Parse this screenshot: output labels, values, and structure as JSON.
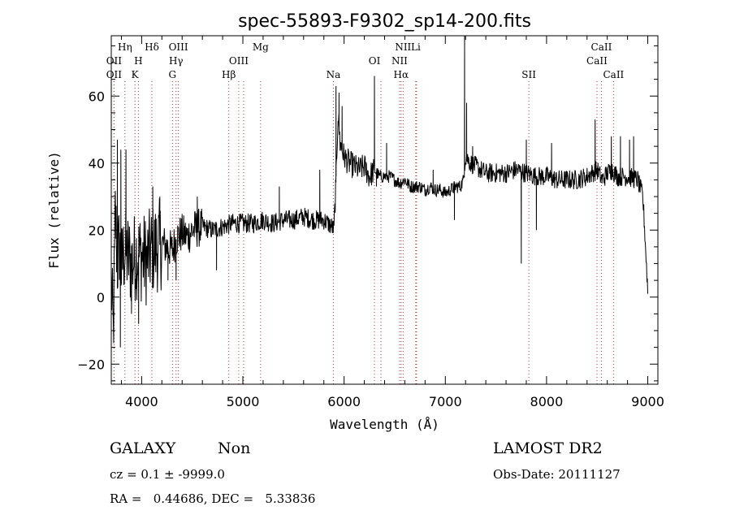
{
  "chart_data": {
    "type": "line",
    "title": "spec-55893-F9302_sp14-200.fits",
    "xlabel": "Wavelength (Å)",
    "ylabel": "Flux (relative)",
    "xlim": [
      3700,
      9100
    ],
    "ylim": [
      -26,
      78
    ],
    "xticks": [
      4000,
      5000,
      6000,
      7000,
      8000,
      9000
    ],
    "yticks": [
      -20,
      0,
      20,
      40,
      60
    ],
    "grid": false,
    "line_color": "#000000",
    "marker_color": "#b03030",
    "spectrum_anchors": [
      [
        3700,
        5
      ],
      [
        3720,
        -12
      ],
      [
        3740,
        25
      ],
      [
        3760,
        10
      ],
      [
        3780,
        16
      ],
      [
        3800,
        8
      ],
      [
        3830,
        14
      ],
      [
        3870,
        12
      ],
      [
        3900,
        10
      ],
      [
        3950,
        13
      ],
      [
        4000,
        12
      ],
      [
        4050,
        11
      ],
      [
        4100,
        14
      ],
      [
        4150,
        15
      ],
      [
        4200,
        16
      ],
      [
        4250,
        15
      ],
      [
        4300,
        14
      ],
      [
        4350,
        18
      ],
      [
        4400,
        19
      ],
      [
        4450,
        18
      ],
      [
        4500,
        20
      ],
      [
        4600,
        21
      ],
      [
        4700,
        20
      ],
      [
        4800,
        21
      ],
      [
        4900,
        22
      ],
      [
        5000,
        22
      ],
      [
        5100,
        22
      ],
      [
        5200,
        23
      ],
      [
        5300,
        22
      ],
      [
        5400,
        23
      ],
      [
        5500,
        23
      ],
      [
        5600,
        24
      ],
      [
        5700,
        23
      ],
      [
        5800,
        23
      ],
      [
        5880,
        21
      ],
      [
        5900,
        20
      ],
      [
        5920,
        35
      ],
      [
        5940,
        55
      ],
      [
        5960,
        46
      ],
      [
        6000,
        42
      ],
      [
        6050,
        40
      ],
      [
        6100,
        39
      ],
      [
        6150,
        38
      ],
      [
        6200,
        39
      ],
      [
        6250,
        36
      ],
      [
        6300,
        38
      ],
      [
        6350,
        36
      ],
      [
        6400,
        36
      ],
      [
        6450,
        36
      ],
      [
        6500,
        35
      ],
      [
        6550,
        34
      ],
      [
        6600,
        35
      ],
      [
        6650,
        33
      ],
      [
        6700,
        33
      ],
      [
        6750,
        33
      ],
      [
        6800,
        32
      ],
      [
        6850,
        33
      ],
      [
        6900,
        32
      ],
      [
        6950,
        32
      ],
      [
        7000,
        31
      ],
      [
        7050,
        32
      ],
      [
        7100,
        33
      ],
      [
        7150,
        33
      ],
      [
        7180,
        35
      ],
      [
        7200,
        42
      ],
      [
        7250,
        40
      ],
      [
        7300,
        39
      ],
      [
        7400,
        37
      ],
      [
        7500,
        37
      ],
      [
        7600,
        37
      ],
      [
        7700,
        38
      ],
      [
        7800,
        37
      ],
      [
        7900,
        36
      ],
      [
        8000,
        36
      ],
      [
        8100,
        35
      ],
      [
        8200,
        35
      ],
      [
        8300,
        35
      ],
      [
        8400,
        36
      ],
      [
        8500,
        38
      ],
      [
        8550,
        35
      ],
      [
        8600,
        37
      ],
      [
        8650,
        38
      ],
      [
        8700,
        36
      ],
      [
        8800,
        36
      ],
      [
        8900,
        35
      ],
      [
        8950,
        30
      ],
      [
        8970,
        20
      ],
      [
        9000,
        2
      ]
    ],
    "spectrum_spikes": [
      [
        3760,
        47
      ],
      [
        3795,
        44
      ],
      [
        3845,
        44
      ],
      [
        3790,
        -15
      ],
      [
        3900,
        -5
      ],
      [
        3970,
        -8
      ],
      [
        4110,
        33
      ],
      [
        4180,
        30
      ],
      [
        4260,
        5
      ],
      [
        4340,
        5
      ],
      [
        4550,
        30
      ],
      [
        4740,
        8
      ],
      [
        5360,
        33
      ],
      [
        5760,
        38
      ],
      [
        5920,
        63
      ],
      [
        5950,
        61
      ],
      [
        5980,
        57
      ],
      [
        6300,
        66
      ],
      [
        6320,
        33
      ],
      [
        6420,
        46
      ],
      [
        6880,
        38
      ],
      [
        7090,
        23
      ],
      [
        7190,
        78
      ],
      [
        7210,
        58
      ],
      [
        7270,
        45
      ],
      [
        7750,
        10
      ],
      [
        7800,
        47
      ],
      [
        7900,
        20
      ],
      [
        8050,
        46
      ],
      [
        8480,
        53
      ],
      [
        8640,
        48
      ],
      [
        8730,
        48
      ],
      [
        8820,
        47
      ],
      [
        8860,
        48
      ]
    ],
    "line_markers": [
      {
        "label": "OII",
        "x": 3727,
        "row": 1
      },
      {
        "label": "Hη",
        "x": 3835,
        "row": 0
      },
      {
        "label": "H",
        "x": 3968,
        "row": 1
      },
      {
        "label": "K",
        "x": 3934,
        "row": 2
      },
      {
        "label": "Hδ",
        "x": 4101,
        "row": 0
      },
      {
        "label": "OII",
        "x": 3727,
        "row": 2
      },
      {
        "label": "OIII",
        "x": 4363,
        "row": 0
      },
      {
        "label": "Hγ",
        "x": 4340,
        "row": 1
      },
      {
        "label": "G",
        "x": 4304,
        "row": 2
      },
      {
        "label": "OIII",
        "x": 4959,
        "row": 1
      },
      {
        "label": "Hβ",
        "x": 4861,
        "row": 2
      },
      {
        "label": "OIII",
        "x": 5007,
        "row": -1
      },
      {
        "label": "Mg",
        "x": 5175,
        "row": 0
      },
      {
        "label": "Na",
        "x": 5894,
        "row": 2
      },
      {
        "label": "OI",
        "x": 6300,
        "row": 1
      },
      {
        "label": "OI",
        "x": 6364,
        "row": -1
      },
      {
        "label": "NII",
        "x": 6548,
        "row": 1
      },
      {
        "label": "NII",
        "x": 6583,
        "row": 0
      },
      {
        "label": "Hα",
        "x": 6563,
        "row": 2
      },
      {
        "label": "Li",
        "x": 6708,
        "row": 0
      },
      {
        "label": "SII",
        "x": 6716,
        "row": -1
      },
      {
        "label": "SII",
        "x": 7825,
        "row": 2
      },
      {
        "label": "CaII",
        "x": 8498,
        "row": 1
      },
      {
        "label": "CaII",
        "x": 8542,
        "row": 0
      },
      {
        "label": "CaII",
        "x": 8662,
        "row": 2
      }
    ]
  },
  "info": {
    "object_class": "GALAXY",
    "subclass": "Non",
    "survey": "LAMOST DR2",
    "redshift_line": "cz = 0.1 ± -9999.0",
    "obs_date_line": "Obs-Date: 20111127",
    "coords_line": "RA =   0.44686, DEC =   5.33836"
  }
}
